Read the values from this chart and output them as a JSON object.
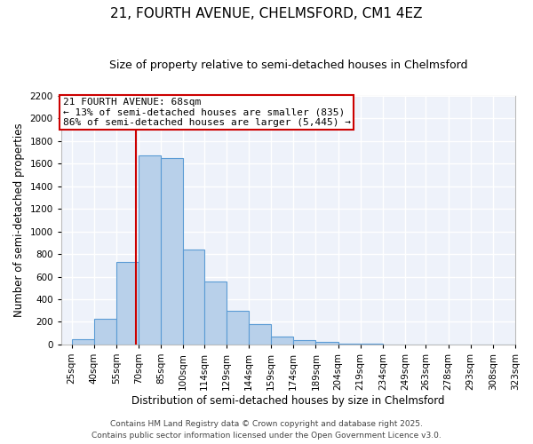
{
  "title": "21, FOURTH AVENUE, CHELMSFORD, CM1 4EZ",
  "subtitle": "Size of property relative to semi-detached houses in Chelmsford",
  "xlabel": "Distribution of semi-detached houses by size in Chelmsford",
  "ylabel": "Number of semi-detached properties",
  "bin_labels": [
    "25sqm",
    "40sqm",
    "55sqm",
    "70sqm",
    "85sqm",
    "100sqm",
    "114sqm",
    "129sqm",
    "144sqm",
    "159sqm",
    "174sqm",
    "189sqm",
    "204sqm",
    "219sqm",
    "234sqm",
    "249sqm",
    "263sqm",
    "278sqm",
    "293sqm",
    "308sqm",
    "323sqm"
  ],
  "bin_left_edges": [
    25,
    40,
    55,
    70,
    85,
    100,
    114,
    129,
    144,
    159,
    174,
    189,
    204,
    219,
    234,
    249,
    263,
    278,
    293,
    308
  ],
  "bin_widths": [
    15,
    15,
    15,
    15,
    15,
    14,
    15,
    15,
    15,
    15,
    15,
    15,
    15,
    15,
    15,
    14,
    15,
    15,
    15,
    15
  ],
  "bar_values": [
    45,
    225,
    730,
    1670,
    1650,
    840,
    560,
    295,
    180,
    70,
    35,
    20,
    10,
    5,
    2,
    2,
    1,
    1,
    0,
    0
  ],
  "bar_color": "#b8d0ea",
  "bar_edge_color": "#5b9bd5",
  "property_line_x": 68,
  "vline_color": "#cc0000",
  "annotation_text": "21 FOURTH AVENUE: 68sqm\n← 13% of semi-detached houses are smaller (835)\n86% of semi-detached houses are larger (5,445) →",
  "annotation_box_color": "#ffffff",
  "annotation_box_edge": "#cc0000",
  "ylim": [
    0,
    2200
  ],
  "yticks": [
    0,
    200,
    400,
    600,
    800,
    1000,
    1200,
    1400,
    1600,
    1800,
    2000,
    2200
  ],
  "xlim_left": 18,
  "xlim_right": 323,
  "footer1": "Contains HM Land Registry data © Crown copyright and database right 2025.",
  "footer2": "Contains public sector information licensed under the Open Government Licence v3.0.",
  "bg_color": "#ffffff",
  "plot_bg_color": "#eef2fa",
  "grid_color": "#ffffff",
  "title_fontsize": 11,
  "subtitle_fontsize": 9,
  "axis_label_fontsize": 8.5,
  "tick_fontsize": 7.5,
  "annotation_fontsize": 8,
  "footer_fontsize": 6.5
}
